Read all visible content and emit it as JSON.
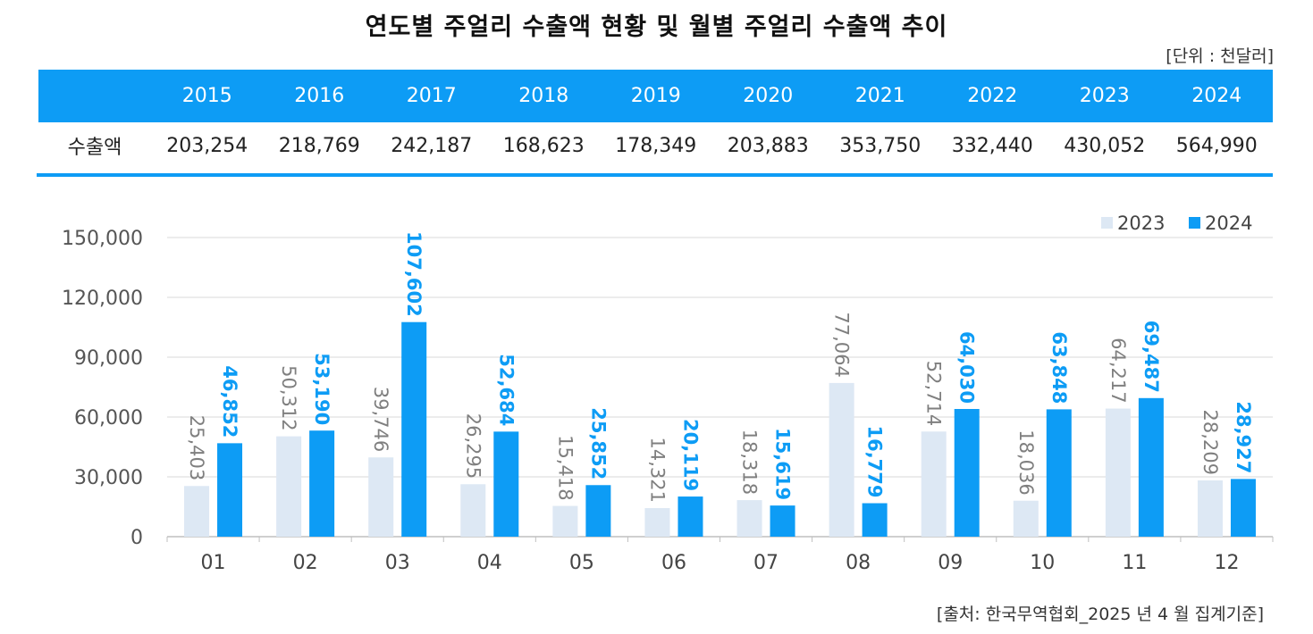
{
  "page": {
    "title": "연도별 주얼리 수출액 현황 및 월별 주얼리 수출액 추이",
    "unit": "[단위 : 천달러]",
    "source": "[출처:  한국무역협회_2025 년 4 월  집계기준]"
  },
  "annual_table": {
    "row_label": "수출액",
    "years": [
      "2015",
      "2016",
      "2017",
      "2018",
      "2019",
      "2020",
      "2021",
      "2022",
      "2023",
      "2024"
    ],
    "values": [
      "203,254",
      "218,769",
      "242,187",
      "168,623",
      "178,349",
      "203,883",
      "353,750",
      "332,440",
      "430,052",
      "564,990"
    ]
  },
  "colors": {
    "header_bg": "#0d9cf5",
    "series_2023": "#dde8f4",
    "series_2024": "#0d9cf5",
    "label_2023": "#7f7f7f",
    "label_2024": "#0d9cf5"
  },
  "chart_data": {
    "type": "bar",
    "categories": [
      "01",
      "02",
      "03",
      "04",
      "05",
      "06",
      "07",
      "08",
      "09",
      "10",
      "11",
      "12"
    ],
    "series": [
      {
        "name": "2023",
        "values": [
          25403,
          50312,
          39746,
          26295,
          15418,
          14321,
          18318,
          77064,
          52714,
          18036,
          64217,
          28209
        ],
        "labels": [
          "25,403",
          "50,312",
          "39,746",
          "26,295",
          "15,418",
          "14,321",
          "18,318",
          "77,064",
          "52,714",
          "18,036",
          "64,217",
          "28,209"
        ]
      },
      {
        "name": "2024",
        "values": [
          46852,
          53190,
          107602,
          52684,
          25852,
          20119,
          15619,
          16779,
          64030,
          63848,
          69487,
          28927
        ],
        "labels": [
          "46,852",
          "53,190",
          "107,602",
          "52,684",
          "25,852",
          "20,119",
          "15,619",
          "16,779",
          "64,030",
          "63,848",
          "69,487",
          "28,927"
        ]
      }
    ],
    "yticks": [
      0,
      30000,
      60000,
      90000,
      120000,
      150000
    ],
    "ytick_labels": [
      "0",
      "30,000",
      "60,000",
      "90,000",
      "120,000",
      "150,000"
    ],
    "ylim": [
      0,
      150000
    ],
    "legend": [
      "2023",
      "2024"
    ],
    "legend_position": "top-right",
    "grid": true,
    "xlabel": "",
    "ylabel": ""
  }
}
